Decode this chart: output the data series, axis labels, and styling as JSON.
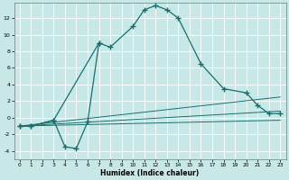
{
  "bg_color": "#c8e8e8",
  "grid_color": "#ffffff",
  "line_color": "#1a6e6e",
  "main_x": [
    0,
    1,
    3,
    7,
    8,
    10,
    11,
    12,
    13,
    14,
    16,
    18,
    20,
    21,
    22,
    23
  ],
  "main_y": [
    -1,
    -1,
    -0.3,
    9.0,
    8.5,
    11,
    13,
    13.5,
    13,
    12,
    6.5,
    3.5,
    3.0,
    1.5,
    0.5,
    0.5
  ],
  "sec_x": [
    0,
    1,
    3,
    4,
    5,
    6,
    7
  ],
  "sec_y": [
    -1,
    -1,
    -0.3,
    -3.5,
    -3.7,
    -0.5,
    9.0
  ],
  "tline1_x": [
    0,
    23
  ],
  "tline1_y": [
    -1,
    2.5
  ],
  "tline2_x": [
    0,
    23
  ],
  "tline2_y": [
    -1,
    0.8
  ],
  "tline3_x": [
    0,
    23
  ],
  "tline3_y": [
    -1,
    -0.3
  ],
  "xlabel": "Humidex (Indice chaleur)",
  "xlim": [
    -0.5,
    23.5
  ],
  "ylim": [
    -5.0,
    13.8
  ],
  "yticks": [
    -4,
    -2,
    0,
    2,
    4,
    6,
    8,
    10,
    12
  ],
  "xticks": [
    0,
    1,
    2,
    3,
    4,
    5,
    6,
    7,
    8,
    9,
    10,
    11,
    12,
    13,
    14,
    15,
    16,
    17,
    18,
    19,
    20,
    21,
    22,
    23
  ]
}
